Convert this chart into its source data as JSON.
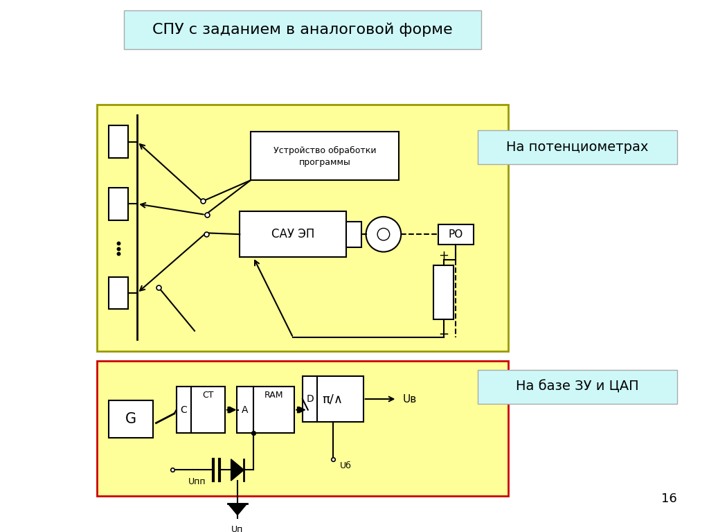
{
  "title": "СПУ с заданием в аналоговой форме",
  "title_bg": "#cef8f8",
  "label1": "На потенциометрах",
  "label2": "На базе ЗУ и ЦАП",
  "label_bg": "#cef8f8",
  "diag1_bg": "#ffff99",
  "diag1_border": "#999900",
  "diag2_bg": "#ffff99",
  "diag2_border": "#cc0000",
  "bg_color": "#ffffff",
  "page_num": "16"
}
